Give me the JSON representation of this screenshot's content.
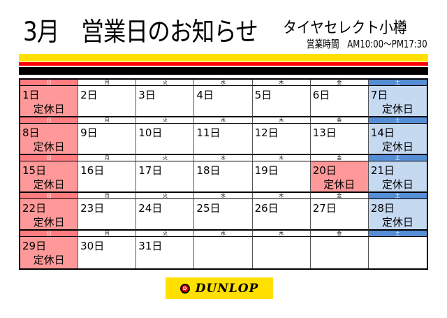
{
  "title": "3月　営業日のお知らせ",
  "store_name": "タイヤセレクト小樽",
  "hours": "営業時間　AM10:00～PM17:30",
  "weekdays": [
    "日",
    "月",
    "火",
    "水",
    "木",
    "金",
    "土"
  ],
  "closed_label": "定休日",
  "weeks": [
    [
      {
        "day": "1日",
        "closed": true
      },
      {
        "day": "2日"
      },
      {
        "day": "3日"
      },
      {
        "day": "4日"
      },
      {
        "day": "5日"
      },
      {
        "day": "6日"
      },
      {
        "day": "7日",
        "closed": true
      }
    ],
    [
      {
        "day": "8日",
        "closed": true
      },
      {
        "day": "9日"
      },
      {
        "day": "10日"
      },
      {
        "day": "11日"
      },
      {
        "day": "12日"
      },
      {
        "day": "13日"
      },
      {
        "day": "14日",
        "closed": true
      }
    ],
    [
      {
        "day": "15日",
        "closed": true
      },
      {
        "day": "16日"
      },
      {
        "day": "17日"
      },
      {
        "day": "18日"
      },
      {
        "day": "19日"
      },
      {
        "day": "20日",
        "closed": true,
        "holiday": true
      },
      {
        "day": "21日",
        "closed": true
      }
    ],
    [
      {
        "day": "22日",
        "closed": true
      },
      {
        "day": "23日"
      },
      {
        "day": "24日"
      },
      {
        "day": "25日"
      },
      {
        "day": "26日"
      },
      {
        "day": "27日"
      },
      {
        "day": "28日",
        "closed": true
      }
    ],
    [
      {
        "day": "29日",
        "closed": true
      },
      {
        "day": "30日"
      },
      {
        "day": "31日"
      },
      {
        "day": ""
      },
      {
        "day": ""
      },
      {
        "day": ""
      },
      {
        "day": ""
      }
    ]
  ],
  "colors": {
    "sun_header": "#ff7c80",
    "sun_cell": "#ff9999",
    "sat_header": "#558ed5",
    "sat_cell": "#c5d9f1",
    "stripe_yellow": "#ffe000",
    "stripe_red": "#ff0000",
    "stripe_black": "#000000"
  },
  "logo": {
    "text": "DUNLOP"
  }
}
